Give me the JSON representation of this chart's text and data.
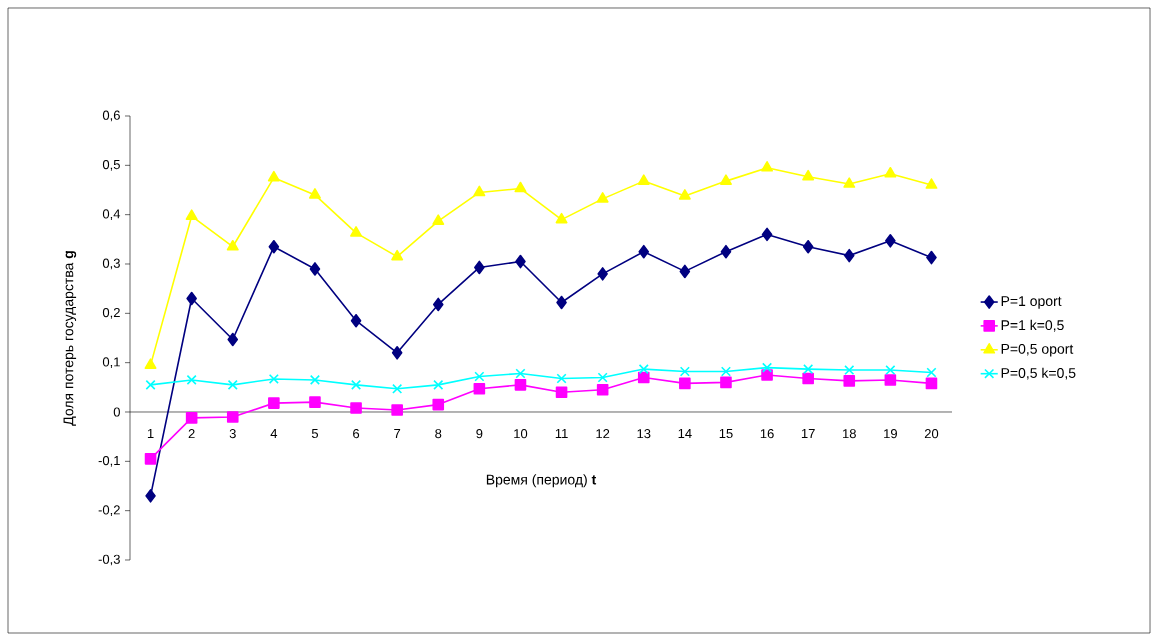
{
  "chart_data": {
    "type": "line",
    "xlabel": "Время (период) **t**",
    "ylabel": "Доля потерь государства **g**",
    "categories": [
      "1",
      "2",
      "3",
      "4",
      "5",
      "6",
      "7",
      "8",
      "9",
      "10",
      "11",
      "12",
      "13",
      "14",
      "15",
      "16",
      "17",
      "18",
      "19",
      "20"
    ],
    "ylim": [
      -0.3,
      0.6
    ],
    "yticks": [
      {
        "value": -0.3,
        "label": "-0,3"
      },
      {
        "value": -0.2,
        "label": "-0,2"
      },
      {
        "value": -0.1,
        "label": "-0,1"
      },
      {
        "value": 0,
        "label": "0"
      },
      {
        "value": 0.1,
        "label": "0,1"
      },
      {
        "value": 0.2,
        "label": "0,2"
      },
      {
        "value": 0.3,
        "label": "0,3"
      },
      {
        "value": 0.4,
        "label": "0,4"
      },
      {
        "value": 0.5,
        "label": "0,5"
      },
      {
        "value": 0.6,
        "label": "0,6"
      }
    ],
    "grid": false,
    "legend": "right",
    "line_style": "solid",
    "series": [
      {
        "name": "P=1 oport",
        "color": "#000080",
        "marker": "diamond",
        "values": [
          -0.17,
          0.23,
          0.147,
          0.335,
          0.29,
          0.185,
          0.12,
          0.218,
          0.293,
          0.305,
          0.222,
          0.28,
          0.325,
          0.285,
          0.325,
          0.36,
          0.335,
          0.317,
          0.347,
          0.313
        ]
      },
      {
        "name": "P=1 k=0,5",
        "color": "#ff00ff",
        "marker": "square",
        "values": [
          -0.095,
          -0.012,
          -0.01,
          0.018,
          0.02,
          0.008,
          0.004,
          0.015,
          0.047,
          0.055,
          0.04,
          0.045,
          0.07,
          0.058,
          0.06,
          0.075,
          0.068,
          0.063,
          0.065,
          0.058
        ]
      },
      {
        "name": "P=0,5 oport",
        "color": "#ffff00",
        "marker": "triangle",
        "values": [
          0.095,
          0.397,
          0.335,
          0.475,
          0.44,
          0.363,
          0.315,
          0.387,
          0.445,
          0.453,
          0.39,
          0.432,
          0.468,
          0.438,
          0.468,
          0.495,
          0.477,
          0.462,
          0.483,
          0.46
        ]
      },
      {
        "name": "P=0,5 k=0,5",
        "color": "#00ffff",
        "marker": "cross",
        "values": [
          0.055,
          0.065,
          0.055,
          0.067,
          0.065,
          0.055,
          0.047,
          0.055,
          0.072,
          0.078,
          0.068,
          0.07,
          0.087,
          0.082,
          0.082,
          0.09,
          0.087,
          0.085,
          0.085,
          0.08
        ]
      }
    ]
  }
}
